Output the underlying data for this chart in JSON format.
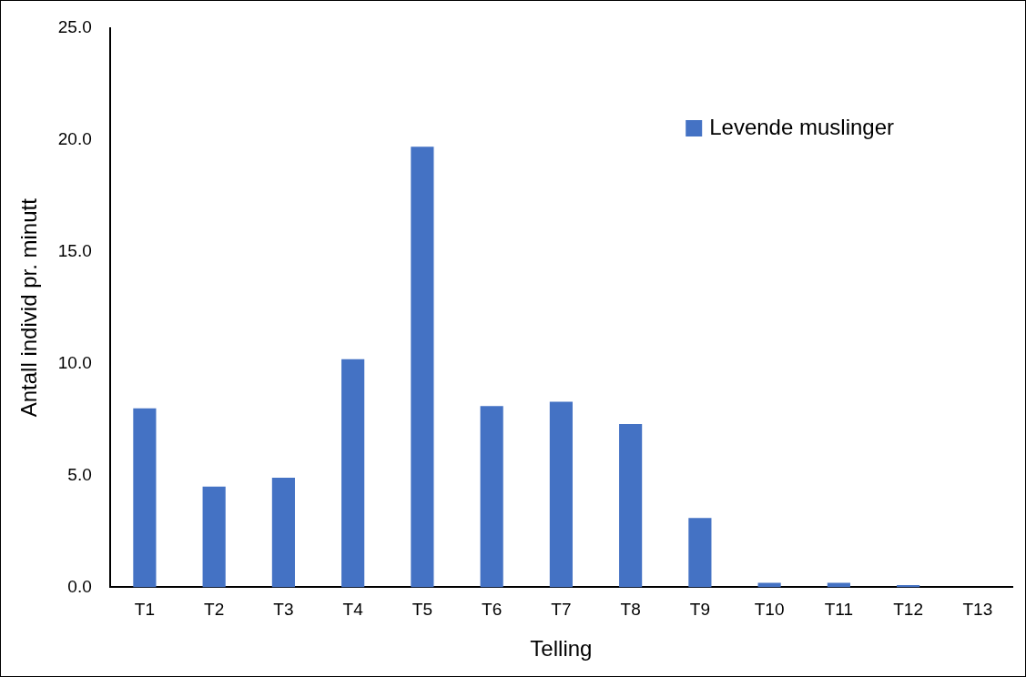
{
  "chart_data": {
    "type": "bar",
    "xlabel": "Telling",
    "ylabel": "Antall individ pr. minutt",
    "categories": [
      "T1",
      "T2",
      "T3",
      "T4",
      "T5",
      "T6",
      "T7",
      "T8",
      "T9",
      "T10",
      "T11",
      "T12",
      "T13"
    ],
    "series": [
      {
        "name": "Levende muslinger",
        "color": "#4472c4",
        "values": [
          8.0,
          4.5,
          4.9,
          10.2,
          19.7,
          8.1,
          8.3,
          7.3,
          3.1,
          0.2,
          0.2,
          0.1,
          0
        ]
      }
    ],
    "ylim": [
      0,
      25
    ],
    "yticks": [
      {
        "value": 0,
        "label": "0.0"
      },
      {
        "value": 5,
        "label": "5.0"
      },
      {
        "value": 10,
        "label": "10.0"
      },
      {
        "value": 15,
        "label": "15.0"
      },
      {
        "value": 20,
        "label": "20.0"
      },
      {
        "value": 25,
        "label": "25.0"
      }
    ],
    "grid": false,
    "legend": "top right"
  }
}
